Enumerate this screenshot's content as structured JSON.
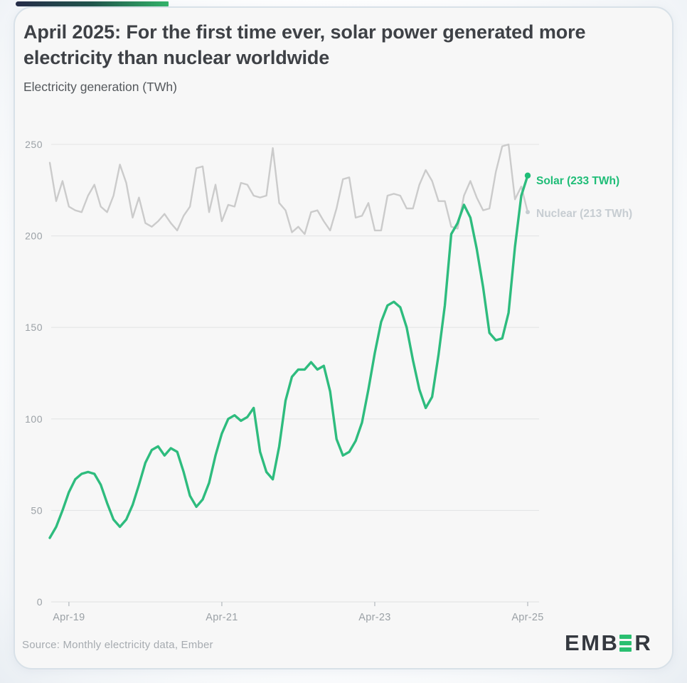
{
  "header": {
    "title_line1": "April 2025: For the first time ever, solar power generated more",
    "title_line2": "electricity than nuclear worldwide",
    "subtitle": "Electricity generation (TWh)"
  },
  "footer": {
    "source": "Source: Monthly electricity data, Ember",
    "logo_part1": "EMB",
    "logo_part2": "R"
  },
  "colors": {
    "solar_line": "#2ebc7e",
    "solar_legend": "#1fbd77",
    "nuclear_line": "#cbcbcb",
    "nuclear_legend": "#c7cdd2",
    "grid": "#e4e5e6",
    "axis_tick": "#bcc1c5",
    "tick_label": "#9ba1a6",
    "card_background": "#f7f7f7",
    "logo_text": "#34383f",
    "logo_green": "#2abf70",
    "strip_start": "#252c48",
    "strip_end": "#33b269"
  },
  "chart_data": {
    "type": "line",
    "title": "April 2025: For the first time ever, solar power generated more electricity than nuclear worldwide",
    "ylabel": "Electricity generation (TWh)",
    "x_start_month": "2019-01",
    "x_end_month": "2025-04",
    "x_interval": "monthly",
    "ylim": [
      0,
      250
    ],
    "y_ticks": [
      0,
      50,
      100,
      150,
      200,
      250
    ],
    "x_ticks": [
      {
        "label": "Apr-19",
        "month_index": 3
      },
      {
        "label": "Apr-21",
        "month_index": 27
      },
      {
        "label": "Apr-23",
        "month_index": 51
      },
      {
        "label": "Apr-25",
        "month_index": 75
      }
    ],
    "grid": "horizontal",
    "legend_position": "right-of-line-ends",
    "series": [
      {
        "name": "Nuclear",
        "label": "Nuclear (213 TWh)",
        "color": "#cbcbcb",
        "legend_color": "#c7cdd2",
        "end_value": 213,
        "values": [
          240,
          219,
          230,
          216,
          214,
          213,
          222,
          228,
          216,
          213,
          222,
          239,
          229,
          210,
          221,
          207,
          205,
          208,
          212,
          207,
          203,
          211,
          216,
          237,
          238,
          213,
          228,
          208,
          217,
          216,
          229,
          228,
          222,
          221,
          222,
          248,
          218,
          214,
          202,
          205,
          201,
          213,
          214,
          208,
          203,
          215,
          231,
          232,
          210,
          211,
          218,
          203,
          203,
          222,
          223,
          222,
          215,
          215,
          228,
          236,
          230,
          219,
          219,
          205,
          204,
          222,
          230,
          221,
          214,
          215,
          235,
          249,
          250,
          220,
          227,
          213
        ]
      },
      {
        "name": "Solar",
        "label": "Solar (233 TWh)",
        "color": "#2ebc7e",
        "legend_color": "#1fbd77",
        "end_value": 233,
        "values": [
          35,
          41,
          50,
          60,
          67,
          70,
          71,
          70,
          64,
          54,
          45,
          41,
          45,
          53,
          64,
          76,
          83,
          85,
          80,
          84,
          82,
          71,
          58,
          52,
          56,
          65,
          80,
          92,
          100,
          102,
          99,
          101,
          106,
          82,
          71,
          67,
          85,
          110,
          123,
          127,
          127,
          131,
          127,
          129,
          115,
          89,
          80,
          82,
          88,
          98,
          116,
          136,
          153,
          162,
          164,
          161,
          150,
          132,
          116,
          106,
          112,
          135,
          162,
          201,
          207,
          217,
          210,
          193,
          172,
          147,
          143,
          144,
          158,
          194,
          222,
          233
        ]
      }
    ]
  }
}
